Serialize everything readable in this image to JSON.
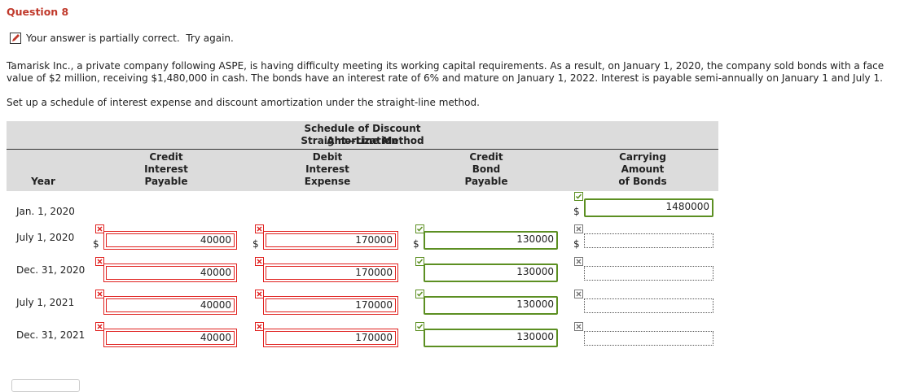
{
  "question": {
    "title": "Question 8",
    "status": "Your answer is partially correct.  Try again.",
    "prompt": "Tamarisk Inc., a private company following ASPE, is having difficulty meeting its working capital requirements. As a result, on January 1, 2020, the company sold bonds with a face value of $2 million, receiving $1,480,000 in cash. The bonds have an interest rate of 6% and mature on January 1, 2022. Interest is payable semi-annually on January 1 and July 1.",
    "instruction": "Set up a schedule of interest expense and discount amortization under the straight-line method."
  },
  "table": {
    "title_lines": [
      "Schedule of Discount Amortization",
      "Straight—Line Method"
    ],
    "year_header": "Year",
    "columns": [
      {
        "lines": [
          "Credit",
          "Interest",
          "Payable"
        ]
      },
      {
        "lines": [
          "Debit",
          "Interest",
          "Expense"
        ]
      },
      {
        "lines": [
          "Credit",
          "Bond",
          "Payable"
        ]
      },
      {
        "lines": [
          "Carrying",
          "Amount",
          "of Bonds"
        ]
      }
    ],
    "currency": "$",
    "rows": [
      {
        "year": "Jan. 1, 2020",
        "cells": [
          null,
          null,
          null,
          {
            "value": 1480000,
            "status": "correct"
          }
        ]
      },
      {
        "year": "July 1, 2020",
        "cells": [
          {
            "value": 40000,
            "status": "incorrect"
          },
          {
            "value": 170000,
            "status": "incorrect"
          },
          {
            "value": 130000,
            "status": "correct"
          },
          {
            "status": "unanswered"
          }
        ]
      },
      {
        "year": "Dec. 31, 2020",
        "cells": [
          {
            "value": 40000,
            "status": "incorrect"
          },
          {
            "value": 170000,
            "status": "incorrect"
          },
          {
            "value": 130000,
            "status": "correct"
          },
          {
            "status": "unanswered"
          }
        ]
      },
      {
        "year": "July 1, 2021",
        "cells": [
          {
            "value": 40000,
            "status": "incorrect"
          },
          {
            "value": 170000,
            "status": "incorrect"
          },
          {
            "value": 130000,
            "status": "correct"
          },
          {
            "status": "unanswered"
          }
        ]
      },
      {
        "year": "Dec. 31, 2021",
        "cells": [
          {
            "value": 40000,
            "status": "incorrect"
          },
          {
            "value": 170000,
            "status": "incorrect"
          },
          {
            "value": 130000,
            "status": "correct"
          },
          {
            "status": "unanswered"
          }
        ]
      }
    ]
  }
}
